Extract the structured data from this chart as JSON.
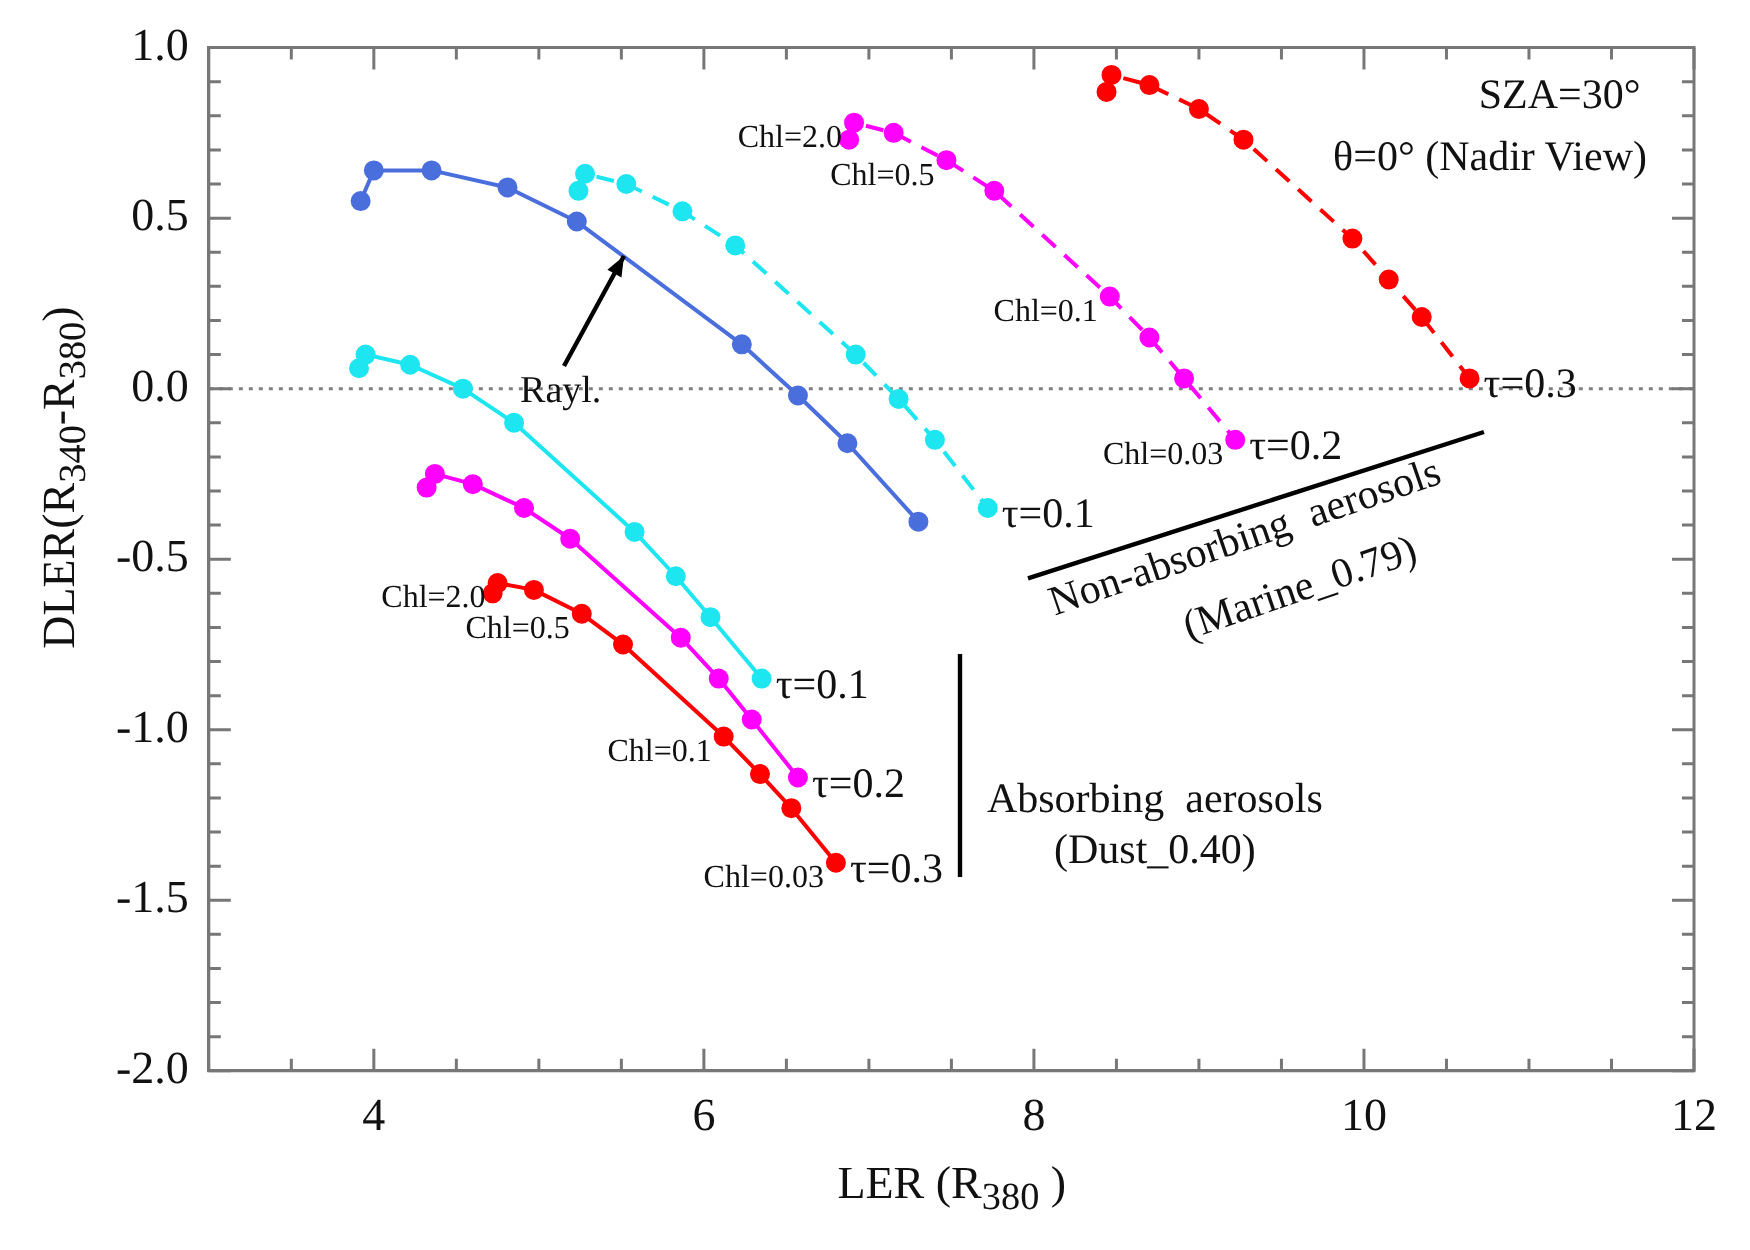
{
  "chart_data": {
    "type": "line",
    "xlabel": "LER (R$_{380}$ )",
    "ylabel": "DLER(R$_{340}$-R$_{380}$)",
    "xlim": [
      3,
      12
    ],
    "ylim": [
      -2,
      1
    ],
    "xticks": [
      {
        "value": 3.5,
        "label": null
      },
      {
        "value": 4,
        "label": "4"
      },
      {
        "value": 4.5,
        "label": null
      },
      {
        "value": 5,
        "label": null
      },
      {
        "value": 5.5,
        "label": null
      },
      {
        "value": 6,
        "label": "6"
      },
      {
        "value": 6.5,
        "label": null
      },
      {
        "value": 7,
        "label": null
      },
      {
        "value": 7.5,
        "label": null
      },
      {
        "value": 8,
        "label": "8"
      },
      {
        "value": 8.5,
        "label": null
      },
      {
        "value": 9,
        "label": null
      },
      {
        "value": 9.5,
        "label": null
      },
      {
        "value": 10,
        "label": "10"
      },
      {
        "value": 10.5,
        "label": null
      },
      {
        "value": 11,
        "label": null
      },
      {
        "value": 11.5,
        "label": null
      },
      {
        "value": 12,
        "label": "12"
      }
    ],
    "yticks": [
      {
        "value": -2,
        "label": "-2.0"
      },
      {
        "value": -1.9,
        "label": null
      },
      {
        "value": -1.8,
        "label": null
      },
      {
        "value": -1.7,
        "label": null
      },
      {
        "value": -1.6,
        "label": null
      },
      {
        "value": -1.5,
        "label": "-1.5"
      },
      {
        "value": -1.4,
        "label": null
      },
      {
        "value": -1.3,
        "label": null
      },
      {
        "value": -1.2,
        "label": null
      },
      {
        "value": -1.1,
        "label": null
      },
      {
        "value": -1,
        "label": "-1.0"
      },
      {
        "value": -0.9,
        "label": null
      },
      {
        "value": -0.8,
        "label": null
      },
      {
        "value": -0.7,
        "label": null
      },
      {
        "value": -0.6,
        "label": null
      },
      {
        "value": -0.5,
        "label": "-0.5"
      },
      {
        "value": -0.4,
        "label": null
      },
      {
        "value": -0.3,
        "label": null
      },
      {
        "value": -0.2,
        "label": null
      },
      {
        "value": -0.1,
        "label": null
      },
      {
        "value": 0,
        "label": "0.0"
      },
      {
        "value": 0.1,
        "label": null
      },
      {
        "value": 0.2,
        "label": null
      },
      {
        "value": 0.3,
        "label": null
      },
      {
        "value": 0.4,
        "label": null
      },
      {
        "value": 0.5,
        "label": "0.5"
      },
      {
        "value": 0.6,
        "label": null
      },
      {
        "value": 0.7,
        "label": null
      },
      {
        "value": 0.8,
        "label": null
      },
      {
        "value": 0.9,
        "label": null
      },
      {
        "value": 1,
        "label": "1.0"
      }
    ],
    "grid": false,
    "legend": false,
    "marker": "circle",
    "series": [
      {
        "color": "#4a6fdc",
        "line_style": "solid",
        "x": [
          3.92,
          4.0,
          4.35,
          4.81,
          5.23,
          6.23,
          6.57,
          6.87,
          7.3
        ],
        "values": [
          0.55,
          0.64,
          0.64,
          0.59,
          0.49,
          0.13,
          -0.02,
          -0.16,
          -0.39
        ]
      },
      {
        "color": "#1ee6f0",
        "line_style": "dashed",
        "x": [
          5.24,
          5.28,
          5.53,
          5.87,
          6.19,
          6.92,
          7.18,
          7.4,
          7.72
        ],
        "values": [
          0.58,
          0.63,
          0.6,
          0.52,
          0.42,
          0.1,
          -0.03,
          -0.15,
          -0.35
        ]
      },
      {
        "color": "#1ee6f0",
        "line_style": "solid",
        "x": [
          3.91,
          3.95,
          4.22,
          4.54,
          4.85,
          5.58,
          5.83,
          6.04,
          6.35
        ],
        "values": [
          0.06,
          0.1,
          0.07,
          0.0,
          -0.1,
          -0.42,
          -0.55,
          -0.67,
          -0.85
        ]
      },
      {
        "color": "#ff00ff",
        "line_style": "solid",
        "x": [
          4.32,
          4.37,
          4.6,
          4.91,
          5.19,
          5.86,
          6.09,
          6.29,
          6.57
        ],
        "values": [
          -0.29,
          -0.25,
          -0.28,
          -0.35,
          -0.44,
          -0.73,
          -0.85,
          -0.97,
          -1.14
        ]
      },
      {
        "color": "#ff0000",
        "line_style": "solid",
        "x": [
          4.72,
          4.75,
          4.97,
          5.26,
          5.51,
          6.12,
          6.34,
          6.53,
          6.8
        ],
        "values": [
          -0.6,
          -0.57,
          -0.59,
          -0.66,
          -0.75,
          -1.02,
          -1.13,
          -1.23,
          -1.39
        ]
      },
      {
        "color": "#ff00ff",
        "line_style": "dashed",
        "x": [
          6.88,
          6.91,
          7.15,
          7.47,
          7.76,
          8.46,
          8.7,
          8.91,
          9.22
        ],
        "values": [
          0.73,
          0.78,
          0.75,
          0.67,
          0.58,
          0.27,
          0.15,
          0.03,
          -0.15
        ]
      },
      {
        "color": "#ff0000",
        "line_style": "dashed",
        "x": [
          8.44,
          8.47,
          8.7,
          9.0,
          9.27,
          9.93,
          10.15,
          10.35,
          10.64
        ],
        "values": [
          0.87,
          0.92,
          0.89,
          0.82,
          0.73,
          0.44,
          0.32,
          0.21,
          0.03
        ]
      }
    ],
    "ref_lines": [
      {
        "axis": "y",
        "value": 0,
        "color": "#808080",
        "line_style": "dotted"
      }
    ],
    "annotations": [
      "SZA=30°",
      "θ=0° (Nadir View)",
      "Non-absorbing  aerosols",
      "(Marine_0.79)",
      "Absorbing  aerosols",
      "(Dust_0.40)",
      {
        "text": "Rayl.",
        "x": 5.52,
        "y": 0.39
      },
      {
        "text": "Chl=2.0",
        "x": 6.91,
        "y": 0.78
      },
      {
        "text": "Chl=0.5",
        "x": 7.47,
        "y": 0.67
      },
      {
        "text": "Chl=0.1",
        "x": 8.46,
        "y": 0.27
      },
      {
        "text": "Chl=0.03",
        "x": 9.22,
        "y": -0.15
      },
      {
        "text": "τ=0.2",
        "x": 9.22,
        "y": -0.15
      },
      {
        "text": "τ=0.1",
        "x": 7.72,
        "y": -0.35
      },
      {
        "text": "τ=0.3",
        "x": 10.64,
        "y": 0.03
      },
      {
        "text": "τ=0.1",
        "x": 6.35,
        "y": -0.85
      },
      {
        "text": "τ=0.2",
        "x": 6.57,
        "y": -1.14
      },
      {
        "text": "Chl=2.0",
        "x": 4.75,
        "y": -0.57
      },
      {
        "text": "Chl=0.5",
        "x": 5.26,
        "y": -0.66
      },
      {
        "text": "Chl=0.1",
        "x": 6.12,
        "y": -1.02
      },
      {
        "text": "Chl=0.03",
        "x": 6.8,
        "y": -1.39
      },
      {
        "text": "τ=0.3",
        "x": 6.8,
        "y": -1.39
      }
    ]
  }
}
